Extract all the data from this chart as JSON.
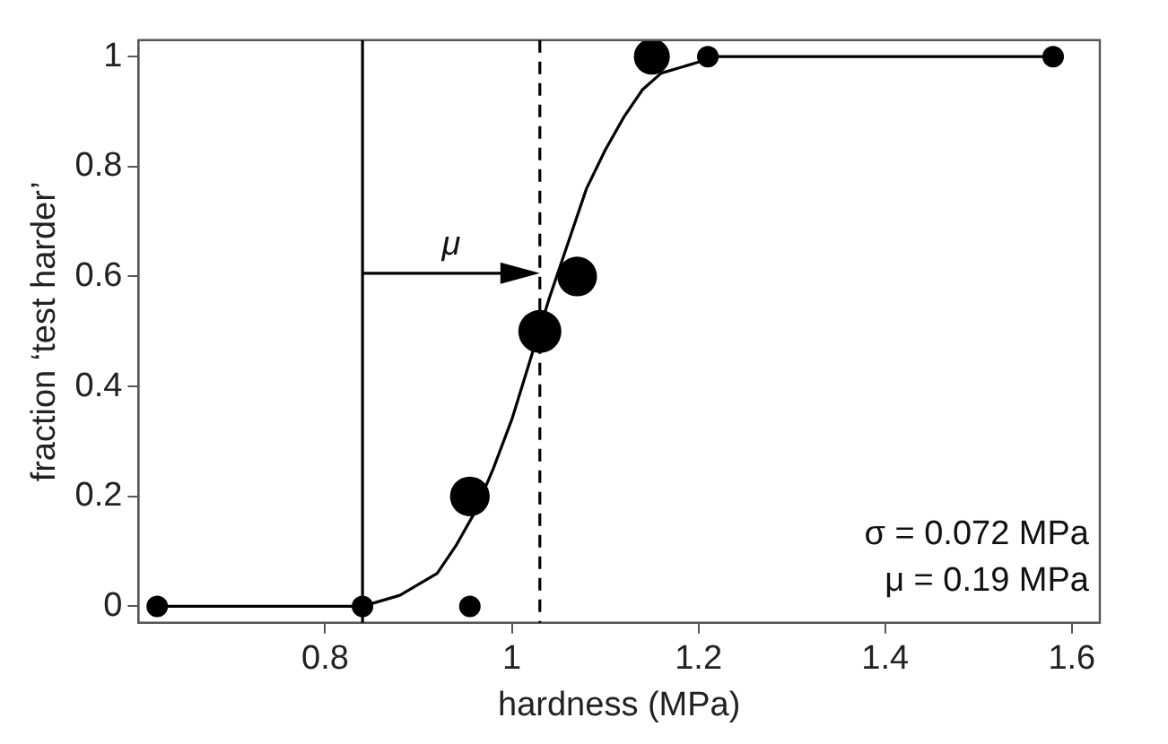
{
  "chart_data": {
    "type": "bubble",
    "xlabel": "hardness (MPa)",
    "ylabel": "fraction ‘test harder’",
    "xlim": [
      0.6,
      1.63
    ],
    "ylim": [
      -0.03,
      1.03
    ],
    "xticks": [
      0.8,
      1,
      1.2,
      1.4,
      1.6
    ],
    "yticks": [
      0,
      0.2,
      0.4,
      0.6,
      0.8,
      1
    ],
    "grid": false,
    "legend": false,
    "series": [
      {
        "color": "#000000",
        "x": [
          0.62,
          0.84,
          0.955,
          0.955,
          1.03,
          1.07,
          1.15,
          1.21,
          1.58
        ],
        "values": [
          0,
          0,
          0,
          0.2,
          0.5,
          0.6,
          1,
          1,
          1
        ],
        "sizes": [
          0.25,
          0.25,
          0.25,
          0.85,
          1,
          0.85,
          0.7,
          0.25,
          0.25
        ]
      },
      {
        "type": "line",
        "color": "#000000",
        "marker": "none",
        "line_style": "solid",
        "x": [
          0.62,
          0.84,
          0.88,
          0.9,
          0.92,
          0.94,
          0.96,
          0.98,
          1.0,
          1.02,
          1.04,
          1.06,
          1.08,
          1.1,
          1.12,
          1.14,
          1.16,
          1.18,
          1.2,
          1.22,
          1.3,
          1.58
        ],
        "values": [
          0,
          0,
          0.02,
          0.04,
          0.06,
          0.11,
          0.17,
          0.25,
          0.34,
          0.45,
          0.56,
          0.66,
          0.76,
          0.83,
          0.89,
          0.94,
          0.97,
          0.98,
          0.99,
          1,
          1,
          1
        ]
      }
    ],
    "ref_lines": [
      {
        "axis": "x",
        "value": 0.84,
        "color": "#000000",
        "line_style": "solid"
      },
      {
        "axis": "x",
        "value": 1.03,
        "color": "#000000",
        "line_style": "dashed"
      }
    ],
    "annotations": [
      "μ",
      "σ = 0.072 MPa",
      "μ = 0.19 MPa"
    ]
  }
}
